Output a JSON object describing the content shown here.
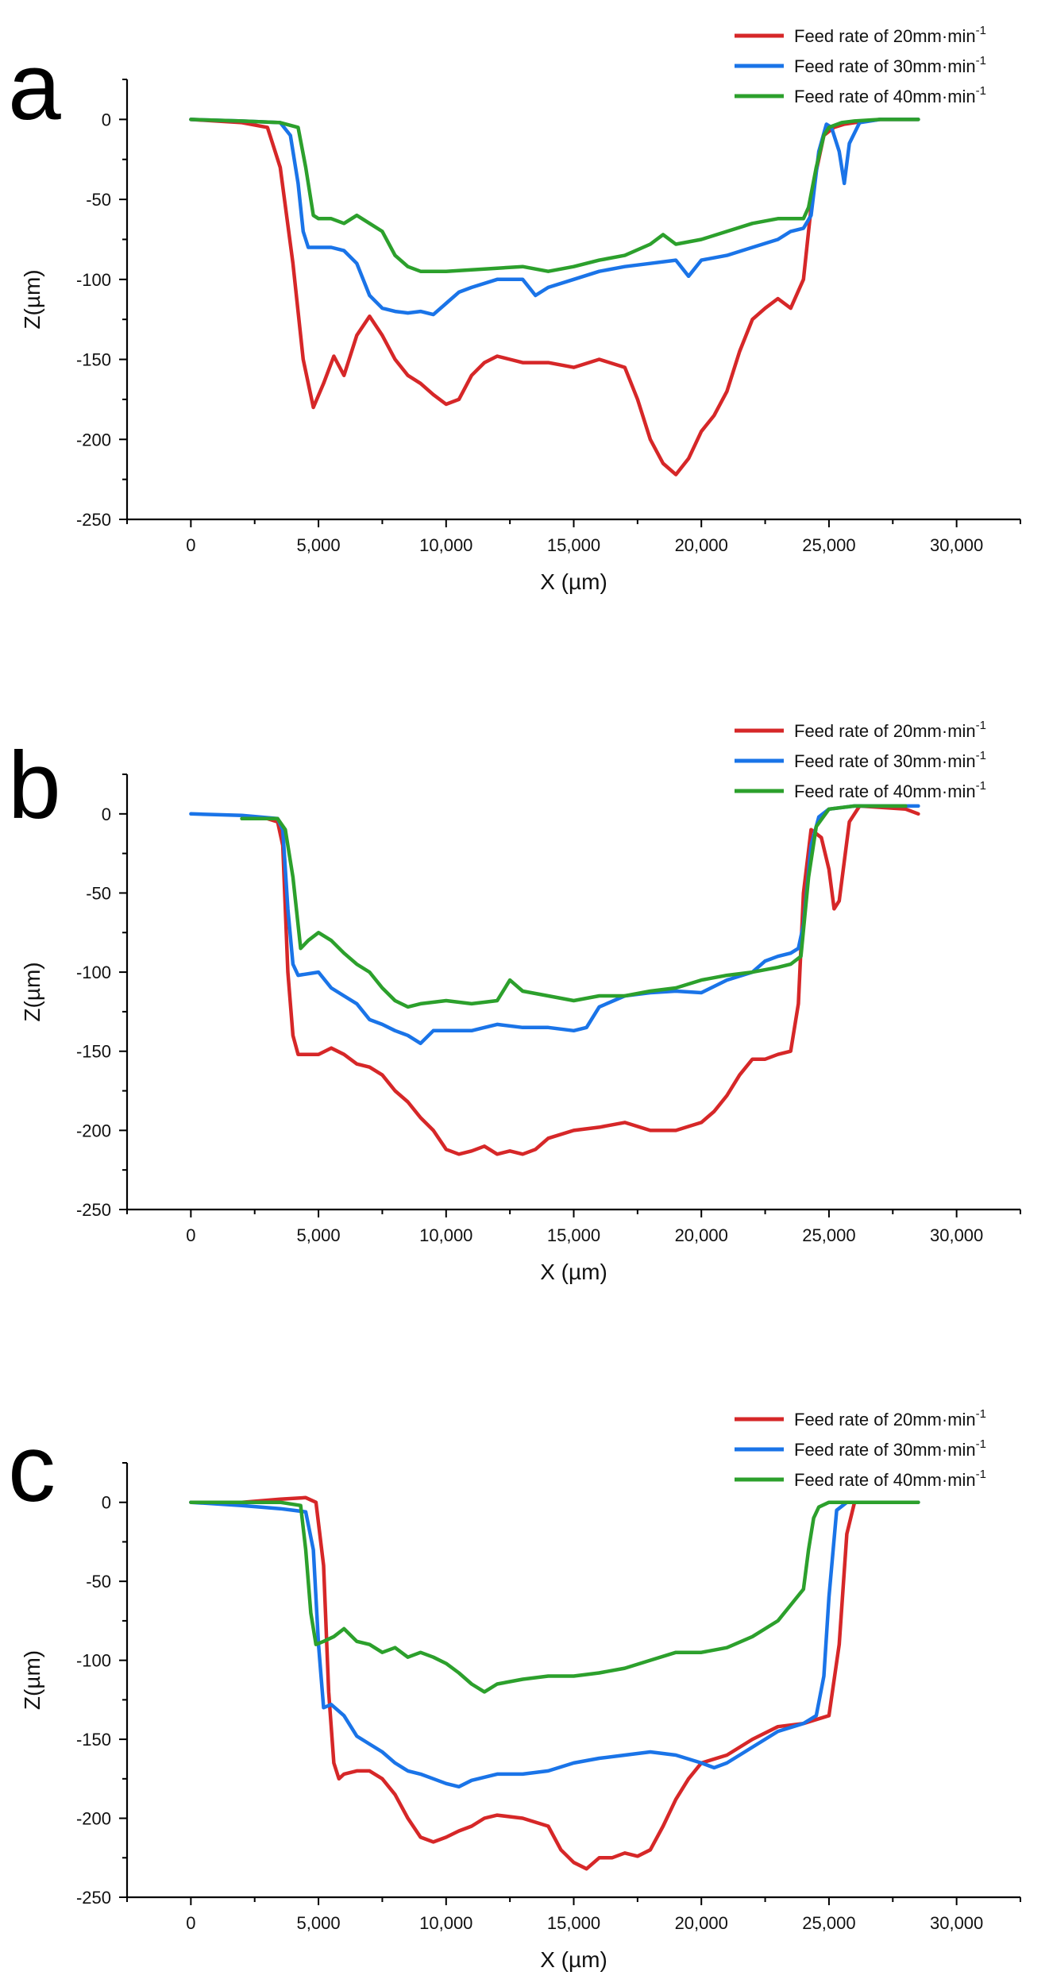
{
  "chart_data": [
    {
      "type": "line",
      "panel_label": "a",
      "xlabel": "X (µm)",
      "ylabel": "Z(µm)",
      "xlim": [
        -2500,
        32500
      ],
      "ylim": [
        -250,
        25
      ],
      "xticks": [
        0,
        5000,
        10000,
        15000,
        20000,
        25000,
        30000
      ],
      "xtick_labels": [
        "0",
        "5,000",
        "10,000",
        "15,000",
        "20,000",
        "25,000",
        "30,000"
      ],
      "yticks": [
        0,
        -50,
        -100,
        -150,
        -200,
        -250
      ],
      "ytick_labels": [
        "0",
        "-50",
        "-100",
        "-150",
        "-200",
        "-250"
      ],
      "legend": {
        "position": "top-right",
        "entries": [
          {
            "label": "Feed rate of 20mm·min",
            "sup": "-1",
            "color": "#d62728"
          },
          {
            "label": "Feed rate of 30mm·min",
            "sup": "-1",
            "color": "#1a74e8"
          },
          {
            "label": "Feed rate of 40mm·min",
            "sup": "-1",
            "color": "#2ca02c"
          }
        ]
      },
      "series": [
        {
          "name": "Feed rate of 20mm·min-1",
          "color": "#d62728",
          "x": [
            0,
            2000,
            3000,
            3500,
            4000,
            4400,
            4800,
            5200,
            5600,
            6000,
            6500,
            7000,
            7500,
            8000,
            8500,
            9000,
            9500,
            10000,
            10500,
            11000,
            11500,
            12000,
            12500,
            13000,
            14000,
            15000,
            16000,
            17000,
            17500,
            18000,
            18500,
            19000,
            19500,
            20000,
            20500,
            21000,
            21500,
            22000,
            22500,
            23000,
            23500,
            24000,
            24400,
            24800,
            25200,
            25600,
            26000,
            27000,
            28500
          ],
          "y": [
            0,
            -2,
            -5,
            -30,
            -90,
            -150,
            -180,
            -165,
            -148,
            -160,
            -135,
            -123,
            -135,
            -150,
            -160,
            -165,
            -172,
            -178,
            -175,
            -160,
            -152,
            -148,
            -150,
            -152,
            -152,
            -155,
            -150,
            -155,
            -175,
            -200,
            -215,
            -222,
            -212,
            -195,
            -185,
            -170,
            -145,
            -125,
            -118,
            -112,
            -118,
            -100,
            -40,
            -10,
            -5,
            -3,
            -2,
            0,
            0
          ]
        },
        {
          "name": "Feed rate of 30mm·min-1",
          "color": "#1a74e8",
          "x": [
            0,
            2000,
            3500,
            3900,
            4200,
            4400,
            4600,
            5000,
            5500,
            6000,
            6500,
            7000,
            7500,
            8000,
            8500,
            9000,
            9500,
            10000,
            10500,
            11000,
            12000,
            13000,
            13500,
            14000,
            15000,
            16000,
            17000,
            18000,
            19000,
            19500,
            20000,
            21000,
            22000,
            23000,
            23500,
            24000,
            24300,
            24600,
            24900,
            25100,
            25400,
            25600,
            25800,
            26200,
            27000,
            28500
          ],
          "y": [
            0,
            -1,
            -2,
            -10,
            -40,
            -70,
            -80,
            -80,
            -80,
            -82,
            -90,
            -110,
            -118,
            -120,
            -121,
            -120,
            -122,
            -115,
            -108,
            -105,
            -100,
            -100,
            -110,
            -105,
            -100,
            -95,
            -92,
            -90,
            -88,
            -98,
            -88,
            -85,
            -80,
            -75,
            -70,
            -68,
            -60,
            -20,
            -3,
            -5,
            -20,
            -40,
            -15,
            -2,
            0,
            0
          ]
        },
        {
          "name": "Feed rate of 40mm·min-1",
          "color": "#2ca02c",
          "x": [
            0,
            2000,
            3500,
            4200,
            4500,
            4800,
            5000,
            5500,
            6000,
            6500,
            7000,
            7500,
            8000,
            8500,
            9000,
            10000,
            11000,
            12000,
            13000,
            14000,
            15000,
            16000,
            17000,
            18000,
            18500,
            19000,
            20000,
            21000,
            22000,
            23000,
            24000,
            24200,
            24500,
            24800,
            25000,
            25500,
            26000,
            27000,
            28500
          ],
          "y": [
            0,
            -1,
            -2,
            -5,
            -30,
            -60,
            -62,
            -62,
            -65,
            -60,
            -65,
            -70,
            -85,
            -92,
            -95,
            -95,
            -94,
            -93,
            -92,
            -95,
            -92,
            -88,
            -85,
            -78,
            -72,
            -78,
            -75,
            -70,
            -65,
            -62,
            -62,
            -55,
            -30,
            -10,
            -5,
            -2,
            -1,
            0,
            0
          ]
        }
      ]
    },
    {
      "type": "line",
      "panel_label": "b",
      "xlabel": "X (µm)",
      "ylabel": "Z(µm)",
      "xlim": [
        -2500,
        32500
      ],
      "ylim": [
        -250,
        25
      ],
      "xticks": [
        0,
        5000,
        10000,
        15000,
        20000,
        25000,
        30000
      ],
      "xtick_labels": [
        "0",
        "5,000",
        "10,000",
        "15,000",
        "20,000",
        "25,000",
        "30,000"
      ],
      "yticks": [
        0,
        -50,
        -100,
        -150,
        -200,
        -250
      ],
      "ytick_labels": [
        "0",
        "-50",
        "-100",
        "-150",
        "-200",
        "-250"
      ],
      "legend": {
        "position": "top-right",
        "entries": [
          {
            "label": "Feed rate of 20mm·min",
            "sup": "-1",
            "color": "#d62728"
          },
          {
            "label": "Feed rate of 30mm·min",
            "sup": "-1",
            "color": "#1a74e8"
          },
          {
            "label": "Feed rate of 40mm·min",
            "sup": "-1",
            "color": "#2ca02c"
          }
        ]
      },
      "series": [
        {
          "name": "Feed rate of 20mm·min-1",
          "color": "#d62728",
          "x": [
            2000,
            3000,
            3400,
            3600,
            3800,
            4000,
            4200,
            5000,
            5500,
            6000,
            6500,
            7000,
            7500,
            8000,
            8500,
            9000,
            9500,
            10000,
            10500,
            11000,
            11500,
            12000,
            12500,
            13000,
            13500,
            14000,
            15000,
            16000,
            17000,
            18000,
            19000,
            20000,
            20500,
            21000,
            21500,
            22000,
            22500,
            23000,
            23500,
            23800,
            24000,
            24300,
            24700,
            25000,
            25200,
            25400,
            25600,
            25800,
            26200,
            28000,
            28500
          ],
          "y": [
            -3,
            -3,
            -5,
            -20,
            -100,
            -140,
            -152,
            -152,
            -148,
            -152,
            -158,
            -160,
            -165,
            -175,
            -182,
            -192,
            -200,
            -212,
            -215,
            -213,
            -210,
            -215,
            -213,
            -215,
            -212,
            -205,
            -200,
            -198,
            -195,
            -200,
            -200,
            -195,
            -188,
            -178,
            -165,
            -155,
            -155,
            -152,
            -150,
            -120,
            -50,
            -10,
            -15,
            -35,
            -60,
            -55,
            -30,
            -5,
            5,
            3,
            0
          ]
        },
        {
          "name": "Feed rate of 30mm·min-1",
          "color": "#1a74e8",
          "x": [
            0,
            2000,
            3400,
            3600,
            3800,
            4000,
            4200,
            5000,
            5500,
            6000,
            6500,
            7000,
            7500,
            8000,
            8500,
            9000,
            9500,
            10000,
            11000,
            12000,
            13000,
            14000,
            15000,
            15500,
            16000,
            17000,
            18000,
            19000,
            20000,
            21000,
            22000,
            22500,
            23000,
            23500,
            23800,
            24000,
            24300,
            24600,
            25000,
            26000,
            27000,
            28500
          ],
          "y": [
            0,
            -1,
            -3,
            -10,
            -60,
            -95,
            -102,
            -100,
            -110,
            -115,
            -120,
            -130,
            -133,
            -137,
            -140,
            -145,
            -137,
            -137,
            -137,
            -133,
            -135,
            -135,
            -137,
            -135,
            -122,
            -115,
            -113,
            -112,
            -113,
            -105,
            -100,
            -93,
            -90,
            -88,
            -85,
            -70,
            -20,
            -2,
            3,
            5,
            5,
            5
          ]
        },
        {
          "name": "Feed rate of 40mm·min-1",
          "color": "#2ca02c",
          "x": [
            2000,
            3400,
            3700,
            4000,
            4300,
            4600,
            5000,
            5500,
            6000,
            6500,
            7000,
            7500,
            8000,
            8500,
            9000,
            10000,
            11000,
            12000,
            12500,
            13000,
            14000,
            15000,
            16000,
            17000,
            18000,
            19000,
            20000,
            21000,
            22000,
            23000,
            23500,
            23900,
            24200,
            24500,
            25000,
            26000,
            28000
          ],
          "y": [
            -3,
            -3,
            -10,
            -40,
            -85,
            -80,
            -75,
            -80,
            -88,
            -95,
            -100,
            -110,
            -118,
            -122,
            -120,
            -118,
            -120,
            -118,
            -105,
            -112,
            -115,
            -118,
            -115,
            -115,
            -112,
            -110,
            -105,
            -102,
            -100,
            -97,
            -95,
            -90,
            -40,
            -8,
            3,
            5,
            5
          ]
        }
      ]
    },
    {
      "type": "line",
      "panel_label": "c",
      "xlabel": "X (µm)",
      "ylabel": "Z(µm)",
      "xlim": [
        -2500,
        32500
      ],
      "ylim": [
        -250,
        25
      ],
      "xticks": [
        0,
        5000,
        10000,
        15000,
        20000,
        25000,
        30000
      ],
      "xtick_labels": [
        "0",
        "5,000",
        "10,000",
        "15,000",
        "20,000",
        "25,000",
        "30,000"
      ],
      "yticks": [
        0,
        -50,
        -100,
        -150,
        -200,
        -250
      ],
      "ytick_labels": [
        "0",
        "-50",
        "-100",
        "-150",
        "-200",
        "-250"
      ],
      "legend": {
        "position": "top-right",
        "entries": [
          {
            "label": "Feed rate of 20mm·min",
            "sup": "-1",
            "color": "#d62728"
          },
          {
            "label": "Feed rate of 30mm·min",
            "sup": "-1",
            "color": "#1a74e8"
          },
          {
            "label": "Feed rate of 40mm·min",
            "sup": "-1",
            "color": "#2ca02c"
          }
        ]
      },
      "series": [
        {
          "name": "Feed rate of 20mm·min-1",
          "color": "#d62728",
          "x": [
            0,
            2000,
            3500,
            4500,
            4900,
            5200,
            5400,
            5600,
            5800,
            6000,
            6500,
            7000,
            7500,
            8000,
            8500,
            9000,
            9500,
            10000,
            10500,
            11000,
            11500,
            12000,
            13000,
            14000,
            14500,
            15000,
            15500,
            16000,
            16500,
            17000,
            17500,
            18000,
            18500,
            19000,
            19500,
            20000,
            21000,
            22000,
            23000,
            24000,
            25000,
            25400,
            25700,
            26000,
            26500,
            27500,
            28500
          ],
          "y": [
            0,
            0,
            2,
            3,
            0,
            -40,
            -120,
            -165,
            -175,
            -172,
            -170,
            -170,
            -175,
            -185,
            -200,
            -212,
            -215,
            -212,
            -208,
            -205,
            -200,
            -198,
            -200,
            -205,
            -220,
            -228,
            -232,
            -225,
            -225,
            -222,
            -224,
            -220,
            -205,
            -188,
            -175,
            -165,
            -160,
            -150,
            -142,
            -140,
            -135,
            -90,
            -20,
            0,
            0,
            0,
            0
          ]
        },
        {
          "name": "Feed rate of 30mm·min-1",
          "color": "#1a74e8",
          "x": [
            0,
            2000,
            3500,
            4500,
            4800,
            5000,
            5200,
            5500,
            6000,
            6500,
            7000,
            7500,
            8000,
            8500,
            9000,
            9500,
            10000,
            10500,
            11000,
            12000,
            13000,
            14000,
            15000,
            16000,
            17000,
            18000,
            19000,
            20000,
            20500,
            21000,
            22000,
            23000,
            24000,
            24500,
            24800,
            25000,
            25300,
            25700,
            26000,
            27000,
            28500
          ],
          "y": [
            0,
            -2,
            -4,
            -6,
            -30,
            -90,
            -130,
            -128,
            -135,
            -148,
            -153,
            -158,
            -165,
            -170,
            -172,
            -175,
            -178,
            -180,
            -176,
            -172,
            -172,
            -170,
            -165,
            -162,
            -160,
            -158,
            -160,
            -165,
            -168,
            -165,
            -155,
            -145,
            -140,
            -135,
            -110,
            -60,
            -5,
            0,
            0,
            0,
            0
          ]
        },
        {
          "name": "Feed rate of 40mm·min-1",
          "color": "#2ca02c",
          "x": [
            0,
            2000,
            3500,
            4300,
            4500,
            4700,
            4900,
            5200,
            5600,
            6000,
            6500,
            7000,
            7500,
            8000,
            8500,
            9000,
            9500,
            10000,
            10500,
            11000,
            11500,
            12000,
            13000,
            14000,
            15000,
            16000,
            17000,
            18000,
            19000,
            20000,
            21000,
            22000,
            23000,
            23500,
            24000,
            24200,
            24400,
            24600,
            25000,
            26000,
            27000,
            28500
          ],
          "y": [
            0,
            0,
            0,
            -2,
            -30,
            -70,
            -90,
            -88,
            -85,
            -80,
            -88,
            -90,
            -95,
            -92,
            -98,
            -95,
            -98,
            -102,
            -108,
            -115,
            -120,
            -115,
            -112,
            -110,
            -110,
            -108,
            -105,
            -100,
            -95,
            -95,
            -92,
            -85,
            -75,
            -65,
            -55,
            -30,
            -10,
            -3,
            0,
            0,
            0,
            0
          ]
        }
      ]
    }
  ]
}
